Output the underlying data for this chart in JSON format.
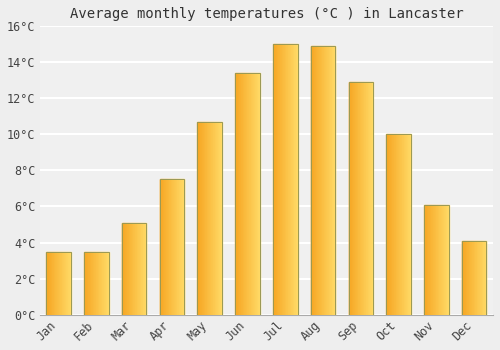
{
  "title": "Average monthly temperatures (°C ) in Lancaster",
  "months": [
    "Jan",
    "Feb",
    "Mar",
    "Apr",
    "May",
    "Jun",
    "Jul",
    "Aug",
    "Sep",
    "Oct",
    "Nov",
    "Dec"
  ],
  "temperatures": [
    3.5,
    3.5,
    5.1,
    7.5,
    10.7,
    13.4,
    15.0,
    14.9,
    12.9,
    10.0,
    6.1,
    4.1
  ],
  "bar_color_left": "#F5A623",
  "bar_color_right": "#FFD966",
  "bar_edge_color": "#888844",
  "ylim": [
    0,
    16
  ],
  "yticks": [
    0,
    2,
    4,
    6,
    8,
    10,
    12,
    14,
    16
  ],
  "ytick_labels": [
    "0°C",
    "2°C",
    "4°C",
    "6°C",
    "8°C",
    "10°C",
    "12°C",
    "14°C",
    "16°C"
  ],
  "background_color": "#eeeeee",
  "plot_bg_color": "#f0f0f0",
  "grid_color": "#ffffff",
  "title_fontsize": 10,
  "tick_fontsize": 8.5,
  "bar_width": 0.65
}
